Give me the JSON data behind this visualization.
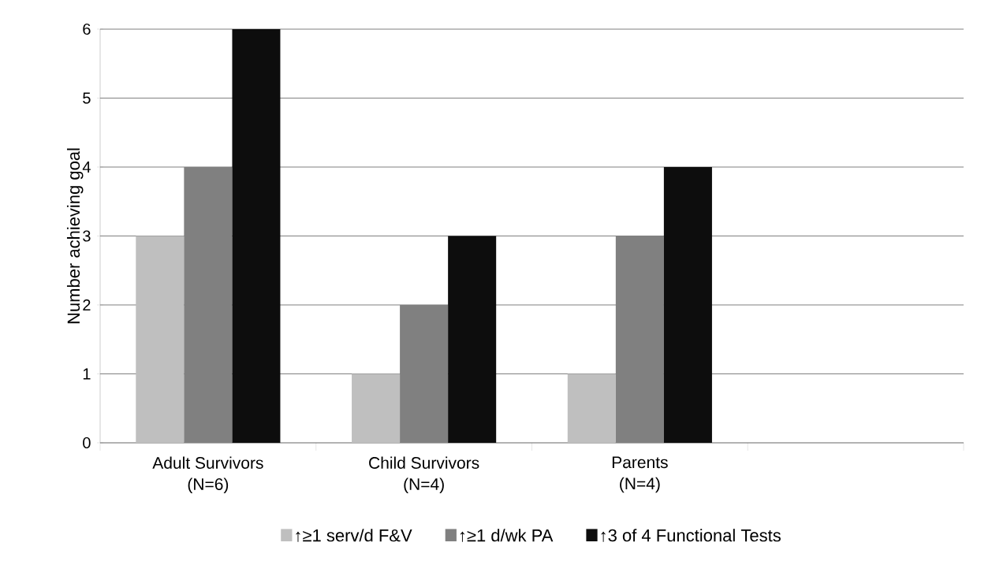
{
  "chart_data": {
    "type": "bar",
    "ylabel": "Number  achieving  goal",
    "categories": [
      "Adult Survivors (N=6)",
      "Child Survivors (N=4)",
      "Parents (N=4)",
      null
    ],
    "series": [
      {
        "name": "↑≥1 serv/d F&V",
        "color": "#bfbfbf",
        "values": [
          3,
          1,
          1,
          null
        ]
      },
      {
        "name": "↑≥1 d/wk PA",
        "color": "#808080",
        "values": [
          4,
          2,
          3,
          null
        ]
      },
      {
        "name": "↑3 of 4 Functional Tests",
        "color": "#0d0d0d",
        "values": [
          6,
          3,
          4,
          null
        ]
      }
    ],
    "ylim": [
      0,
      6
    ],
    "yticks": [
      0,
      1,
      2,
      3,
      4,
      5,
      6
    ],
    "grid": "y",
    "legend": "bottom"
  }
}
